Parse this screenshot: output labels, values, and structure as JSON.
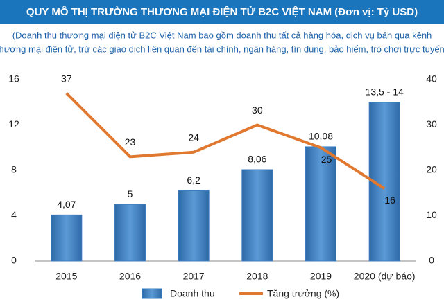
{
  "chart_data": {
    "type": "bar_line",
    "title": "QUY MÔ THỊ TRƯỜNG THƯƠNG MẠI ĐIỆN TỬ B2C VIỆT NAM (Đơn vị: Tỷ USD)",
    "subtitle": [
      "(Doanh thu thương mại điện tử B2C Việt Nam bao gồm doanh thu tất cả hàng hóa, dịch vụ bán qua kênh",
      "thương mại điện tử, trừ các giao dịch liên quan đến tài chính, ngân hàng, tín dụng, bảo hiểm, trò chơi trực tuyến)"
    ],
    "categories": [
      "2015",
      "2016",
      "2017",
      "2018",
      "2019",
      "2020 (dự báo)"
    ],
    "series": [
      {
        "name": "Doanh thu",
        "type": "bar",
        "color": "#3d7cc0",
        "values": [
          4.07,
          5,
          6.2,
          8.06,
          10.08,
          14
        ],
        "value_labels": [
          "4,07",
          "5",
          "6,2",
          "8,06",
          "10,08",
          "13,5 - 14"
        ]
      },
      {
        "name": "Tăng trưởng (%)",
        "type": "line",
        "axis": "y2",
        "color": "#e0782f",
        "values": [
          37,
          23,
          24,
          30,
          25,
          16
        ]
      }
    ],
    "ylim": [
      0,
      16
    ],
    "yticks": [
      0,
      4,
      8,
      12,
      16
    ],
    "y2lim": [
      0,
      40
    ],
    "y2ticks": [
      0,
      10,
      20,
      30,
      40
    ]
  }
}
